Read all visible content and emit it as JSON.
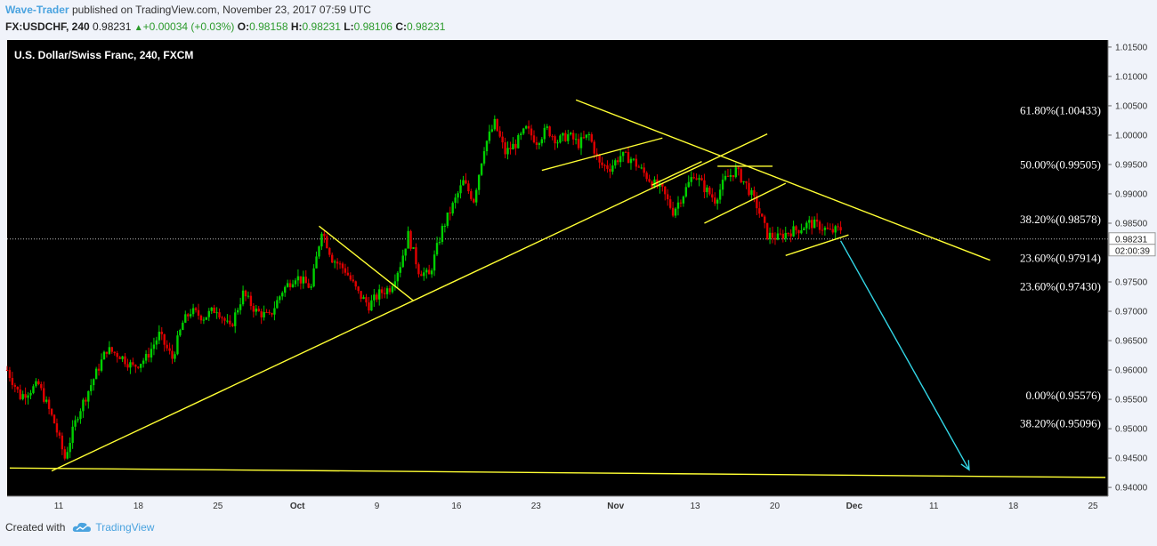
{
  "header": {
    "author": "Wave-Trader",
    "published_text": "published on TradingView.com, November 23, 2017 07:59 UTC",
    "symbol": "FX:USDCHF, 240",
    "last": "0.98231",
    "change": "+0.00034 (+0.03%)",
    "o_label": "O:",
    "o_value": "0.98158",
    "h_label": "H:",
    "h_value": "0.98231",
    "l_label": "L:",
    "l_value": "0.98106",
    "c_label": "C:",
    "c_value": "0.98231"
  },
  "footer": {
    "created_with": "Created with",
    "brand": "TradingView"
  },
  "colors": {
    "background": "#000000",
    "candle_up": "#00d000",
    "candle_down": "#e00000",
    "trendline": "#ffff33",
    "projection_arrow": "#33d6e6",
    "axis_text": "#333333",
    "brand": "#4aa3df"
  },
  "chart_data": {
    "type": "candlestick",
    "title": "U.S. Dollar/Swiss Franc, 240, FXCM",
    "y_range": [
      0.9385,
      1.0162
    ],
    "y_ticks": [
      "1.01500",
      "1.01000",
      "1.00500",
      "1.00000",
      "0.99500",
      "0.99000",
      "0.98500",
      "0.97500",
      "0.97000",
      "0.96500",
      "0.96000",
      "0.95500",
      "0.95000",
      "0.94500",
      "0.94000"
    ],
    "price_label": "0.98231",
    "countdown": "02:00:39",
    "current_price": 0.98231,
    "x_ticks": [
      "11",
      "18",
      "25",
      "Oct",
      "9",
      "16",
      "23",
      "Nov",
      "13",
      "20",
      "Dec",
      "11",
      "18",
      "25"
    ],
    "fib_levels": [
      {
        "label": "61.80%(1.00433)",
        "value": 1.00433
      },
      {
        "label": "50.00%(0.99505)",
        "value": 0.99505
      },
      {
        "label": "38.20%(0.98578)",
        "value": 0.98578
      },
      {
        "label": "23.60%(0.97914)",
        "value": 0.97914
      },
      {
        "label": "23.60%(0.97430)",
        "value": 0.9743
      },
      {
        "label": "0.00%(0.95576)",
        "value": 0.95576
      },
      {
        "label": "38.20%(0.95096)",
        "value": 0.95096
      }
    ],
    "price_path": [
      [
        0,
        0.96
      ],
      [
        5,
        0.9555
      ],
      [
        12,
        0.9575
      ],
      [
        18,
        0.951
      ],
      [
        22,
        0.945
      ],
      [
        27,
        0.9525
      ],
      [
        33,
        0.9585
      ],
      [
        38,
        0.9635
      ],
      [
        43,
        0.9625
      ],
      [
        48,
        0.9605
      ],
      [
        53,
        0.962
      ],
      [
        58,
        0.966
      ],
      [
        63,
        0.962
      ],
      [
        67,
        0.968
      ],
      [
        70,
        0.97
      ],
      [
        75,
        0.969
      ],
      [
        80,
        0.9705
      ],
      [
        85,
        0.967
      ],
      [
        90,
        0.973
      ],
      [
        95,
        0.97
      ],
      [
        100,
        0.969
      ],
      [
        105,
        0.9735
      ],
      [
        110,
        0.976
      ],
      [
        116,
        0.974
      ],
      [
        120,
        0.984
      ],
      [
        124,
        0.979
      ],
      [
        129,
        0.977
      ],
      [
        134,
        0.973
      ],
      [
        138,
        0.971
      ],
      [
        142,
        0.973
      ],
      [
        146,
        0.974
      ],
      [
        150,
        0.978
      ],
      [
        153,
        0.983
      ],
      [
        157,
        0.977
      ],
      [
        161,
        0.976
      ],
      [
        166,
        0.984
      ],
      [
        170,
        0.988
      ],
      [
        174,
        0.992
      ],
      [
        178,
        0.989
      ],
      [
        182,
        0.998
      ],
      [
        186,
        1.002
      ],
      [
        190,
        0.997
      ],
      [
        194,
        0.9985
      ],
      [
        198,
        1.001
      ],
      [
        202,
        0.999
      ],
      [
        206,
        1.001
      ],
      [
        210,
        0.999
      ],
      [
        214,
        1.0
      ],
      [
        218,
        0.9985
      ],
      [
        222,
        1.0
      ],
      [
        226,
        0.995
      ],
      [
        230,
        0.9945
      ],
      [
        234,
        0.9965
      ],
      [
        238,
        0.996
      ],
      [
        242,
        0.994
      ],
      [
        246,
        0.992
      ],
      [
        250,
        0.9905
      ],
      [
        254,
        0.987
      ],
      [
        258,
        0.99
      ],
      [
        262,
        0.9935
      ],
      [
        266,
        0.991
      ],
      [
        270,
        0.989
      ],
      [
        274,
        0.9925
      ],
      [
        278,
        0.994
      ],
      [
        282,
        0.9915
      ],
      [
        286,
        0.988
      ],
      [
        290,
        0.983
      ],
      [
        294,
        0.9825
      ],
      [
        298,
        0.9835
      ],
      [
        302,
        0.984
      ],
      [
        306,
        0.985
      ],
      [
        310,
        0.9845
      ],
      [
        314,
        0.9835
      ],
      [
        318,
        0.984
      ]
    ],
    "x_domain": [
      0,
      420
    ],
    "trendlines": [
      {
        "from": [
          1,
          0.9433
        ],
        "to": [
          419,
          0.9417
        ]
      },
      {
        "from": [
          17,
          0.9428
        ],
        "to": [
          290,
          1.0002
        ]
      },
      {
        "from": [
          119,
          0.9845
        ],
        "to": [
          155,
          0.9718
        ]
      },
      {
        "from": [
          217,
          1.006
        ],
        "to": [
          375,
          0.9787
        ]
      },
      {
        "from": [
          204,
          0.994
        ],
        "to": [
          250,
          0.9995
        ]
      },
      {
        "from": [
          246,
          0.9915
        ],
        "to": [
          265,
          0.9955
        ]
      },
      {
        "from": [
          271,
          0.9947
        ],
        "to": [
          292,
          0.9947
        ]
      },
      {
        "from": [
          266,
          0.985
        ],
        "to": [
          297,
          0.9918
        ]
      },
      {
        "from": [
          297,
          0.9795
        ],
        "to": [
          321,
          0.983
        ]
      }
    ],
    "projection_arrow": {
      "from": [
        318,
        0.982
      ],
      "to": [
        367,
        0.943
      ]
    }
  }
}
